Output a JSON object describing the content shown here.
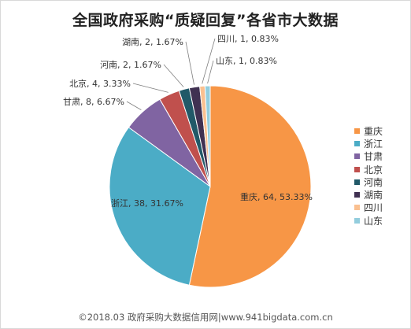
{
  "chart_data": {
    "type": "pie",
    "title": "全国政府采购“质疑回复”各省市大数据",
    "slices": [
      {
        "name": "重庆",
        "value": 64,
        "percent": "53.33%",
        "color": "#F79646"
      },
      {
        "name": "浙江",
        "value": 38,
        "percent": "31.67%",
        "color": "#4BACC6"
      },
      {
        "name": "甘肃",
        "value": 8,
        "percent": "6.67%",
        "color": "#8064A2"
      },
      {
        "name": "北京",
        "value": 4,
        "percent": "3.33%",
        "color": "#C0504D"
      },
      {
        "name": "河南",
        "value": 2,
        "percent": "1.67%",
        "color": "#215968"
      },
      {
        "name": "湖南",
        "value": 2,
        "percent": "1.67%",
        "color": "#403152"
      },
      {
        "name": "四川",
        "value": 1,
        "percent": "0.83%",
        "color": "#FAC090"
      },
      {
        "name": "山东",
        "value": 1,
        "percent": "0.83%",
        "color": "#93CDDD"
      }
    ],
    "legend_position": "right"
  },
  "footer": "©2018.03 政府采购大数据信用网|www.941bigdata.com.cn"
}
